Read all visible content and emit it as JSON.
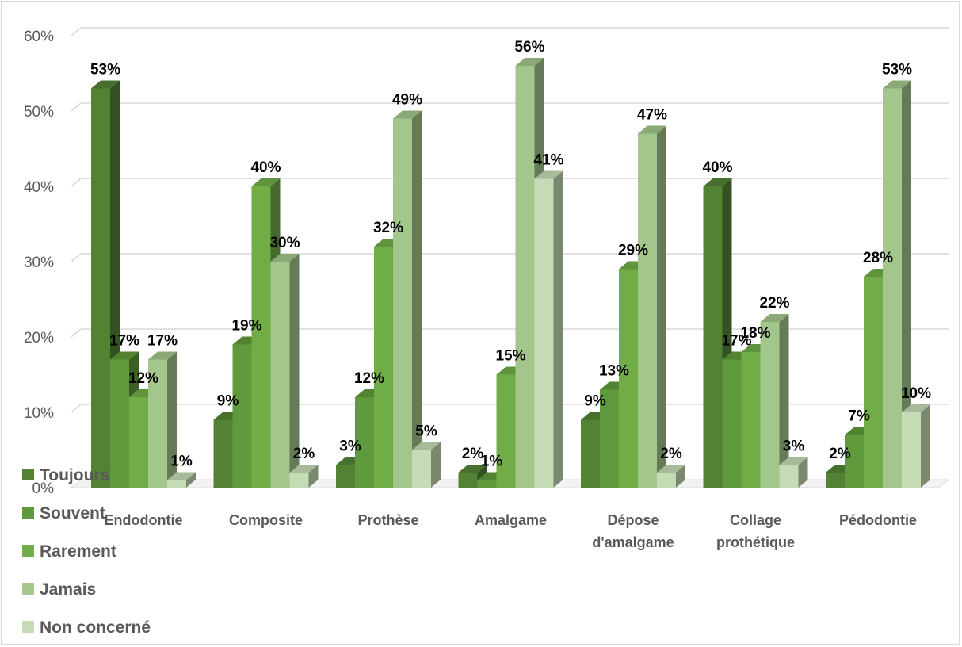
{
  "chart_data": {
    "type": "bar",
    "bar_style": "3d-clustered-column",
    "categories": [
      "Endodontie",
      "Composite",
      "Prothèse",
      "Amalgame",
      "Dépose d'amalgame",
      "Collage prothétique",
      "Pédodontie"
    ],
    "category_lines": [
      [
        "Endodontie"
      ],
      [
        "Composite"
      ],
      [
        "Prothèse"
      ],
      [
        "Amalgame"
      ],
      [
        "Dépose",
        "d'amalgame"
      ],
      [
        "Collage",
        "prothétique"
      ],
      [
        "Pédodontie"
      ]
    ],
    "series": [
      {
        "name": "Toujours",
        "color": "#548235",
        "values": [
          53,
          9,
          3,
          2,
          9,
          40,
          2
        ]
      },
      {
        "name": "Souvent",
        "color": "#5f9a3c",
        "values": [
          17,
          19,
          12,
          1,
          13,
          17,
          7
        ]
      },
      {
        "name": "Rarement",
        "color": "#70ad47",
        "values": [
          12,
          40,
          32,
          15,
          29,
          18,
          28
        ]
      },
      {
        "name": "Jamais",
        "color": "#a3c68c",
        "values": [
          17,
          30,
          49,
          56,
          47,
          22,
          53
        ]
      },
      {
        "name": "Non concerné",
        "color": "#c5dbb5",
        "values": [
          1,
          2,
          5,
          41,
          2,
          3,
          10
        ]
      }
    ],
    "value_suffix": "%",
    "ylim": [
      0,
      60
    ],
    "yticks": [
      "0%",
      "10%",
      "20%",
      "30%",
      "40%",
      "50%",
      "60%"
    ],
    "grid": true,
    "legend": "bottom-left"
  }
}
